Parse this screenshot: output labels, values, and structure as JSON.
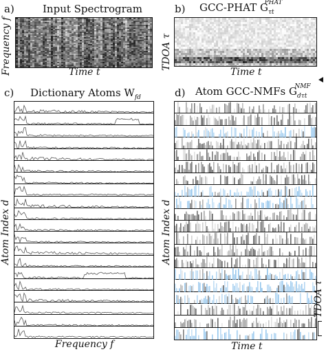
{
  "panels": {
    "a": {
      "letter": "a)",
      "title": "Input Spectrogram",
      "xlabel": "Time t",
      "ylabel": "Frequency f"
    },
    "b": {
      "letter": "b)",
      "title_main": "GCC-PHAT G",
      "title_sub": "τt",
      "title_sup": "PHAT",
      "xlabel": "Time t",
      "ylabel": "TDOA τ"
    },
    "c": {
      "letter": "c)",
      "title_main": "Dictionary Atoms W",
      "title_sub": "fd",
      "xlabel": "Frequency f",
      "ylabel": "Atom Index d"
    },
    "d": {
      "letter": "d)",
      "title_main": "Atom GCC-NMFs G",
      "title_sub": "dτt",
      "title_sup": "NMF",
      "xlabel": "Time t",
      "ylabel": "Atom Index d",
      "side_label": "TDOA τ"
    }
  },
  "colors": {
    "ink": "#111111",
    "accent_blue": "#8fc3ec"
  }
}
